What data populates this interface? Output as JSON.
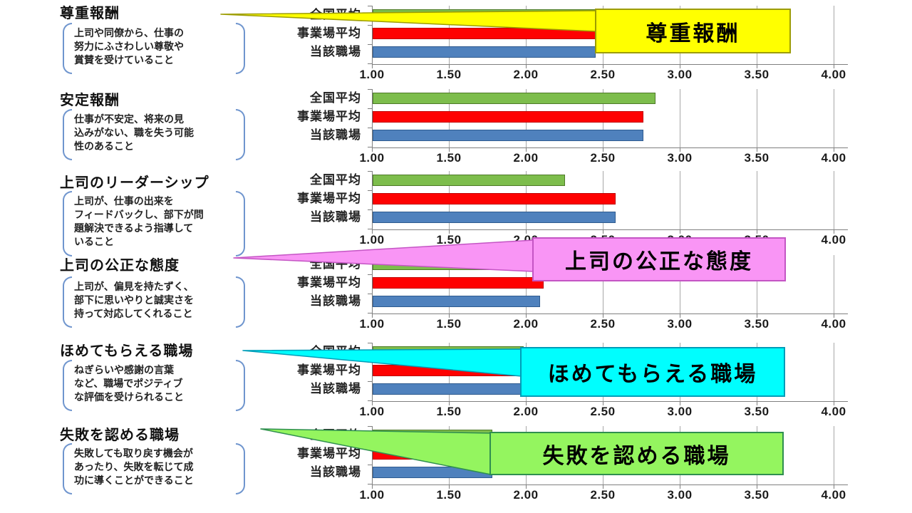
{
  "slide": {
    "background": "#FFFFFF"
  },
  "axis": {
    "tick_labels": [
      "1.00",
      "1.50",
      "2.00",
      "2.50",
      "3.00",
      "3.50",
      "4.00"
    ],
    "min": 1.0,
    "max": 4.0
  },
  "categories": [
    "全国平均",
    "事業場平均",
    "当該職場"
  ],
  "bar_colors": {
    "national": {
      "fill": "#7DBD4C",
      "border": "#4E7A28"
    },
    "worksite": {
      "fill": "#FE0101",
      "border": "#C00000"
    },
    "workplace": {
      "fill": "#4F81BD",
      "border": "#2F5B8F"
    }
  },
  "sections": [
    {
      "title": "尊重報酬",
      "description": "上司や同僚から、仕事の\n努力にふさわしい尊敬や\n賞賛を受けていること",
      "values": [
        2.45,
        2.44,
        2.44
      ]
    },
    {
      "title": "安定報酬",
      "description": "仕事が不安定、将来の見\n込みがない、職を失う可能\n性のあること",
      "values": [
        2.83,
        2.75,
        2.75
      ]
    },
    {
      "title": "上司のリーダーシップ",
      "description": "上司が、仕事の出来を\nフィードバックし、部下が問\n題解決できるよう指導して\nいること",
      "values": [
        2.24,
        2.57,
        2.57
      ]
    },
    {
      "title": "上司の公正な態度",
      "description": "上司が、偏見を持たずく、\n部下に思いやりと誠実さを\n持って対応してくれること",
      "values": [
        2.05,
        2.1,
        2.08
      ]
    },
    {
      "title": "ほめてもらえる職場",
      "description": "ねぎらいや感謝の言葉\nなど、職場でポジティブ\nな評価を受けられること",
      "values": [
        1.97,
        1.99,
        1.98
      ]
    },
    {
      "title": "失敗を認める職場",
      "description": "失敗しても取り戻す機会が\nあったり、失敗を転じて成\n功に導くことができること",
      "values": [
        1.77,
        1.76,
        1.77
      ]
    }
  ],
  "callouts": [
    {
      "label": "尊重報酬",
      "fill": "#FFFF00",
      "border": "#9C9C00"
    },
    {
      "label": "上司の公正な態度",
      "fill": "#F995F5",
      "border": "#C455C4"
    },
    {
      "label": "ほめてもらえる職場",
      "fill": "#00FEFE",
      "border": "#009DB8"
    },
    {
      "label": "失敗を認める職場",
      "fill": "#94F55F",
      "border": "#2F8F4F"
    }
  ],
  "chart_data": [
    {
      "type": "bar",
      "orientation": "horizontal",
      "title": "尊重報酬",
      "categories": [
        "全国平均",
        "事業場平均",
        "当該職場"
      ],
      "values": [
        2.45,
        2.44,
        2.44
      ],
      "xlim": [
        1.0,
        4.0
      ],
      "xticks": [
        1.0,
        1.5,
        2.0,
        2.5,
        3.0,
        3.5,
        4.0
      ],
      "grid": true,
      "legend_position": "none",
      "bar_colors": [
        "#7DBD4C",
        "#FE0101",
        "#4F81BD"
      ]
    },
    {
      "type": "bar",
      "orientation": "horizontal",
      "title": "安定報酬",
      "categories": [
        "全国平均",
        "事業場平均",
        "当該職場"
      ],
      "values": [
        2.83,
        2.75,
        2.75
      ],
      "xlim": [
        1.0,
        4.0
      ],
      "xticks": [
        1.0,
        1.5,
        2.0,
        2.5,
        3.0,
        3.5,
        4.0
      ],
      "grid": true,
      "legend_position": "none",
      "bar_colors": [
        "#7DBD4C",
        "#FE0101",
        "#4F81BD"
      ]
    },
    {
      "type": "bar",
      "orientation": "horizontal",
      "title": "上司のリーダーシップ",
      "categories": [
        "全国平均",
        "事業場平均",
        "当該職場"
      ],
      "values": [
        2.24,
        2.57,
        2.57
      ],
      "xlim": [
        1.0,
        4.0
      ],
      "xticks": [
        1.0,
        1.5,
        2.0,
        2.5,
        3.0,
        3.5,
        4.0
      ],
      "grid": true,
      "legend_position": "none",
      "bar_colors": [
        "#7DBD4C",
        "#FE0101",
        "#4F81BD"
      ]
    },
    {
      "type": "bar",
      "orientation": "horizontal",
      "title": "上司の公正な態度",
      "categories": [
        "全国平均",
        "事業場平均",
        "当該職場"
      ],
      "values": [
        2.05,
        2.1,
        2.08
      ],
      "xlim": [
        1.0,
        4.0
      ],
      "xticks": [
        1.0,
        1.5,
        2.0,
        2.5,
        3.0,
        3.5,
        4.0
      ],
      "grid": true,
      "legend_position": "none",
      "bar_colors": [
        "#7DBD4C",
        "#FE0101",
        "#4F81BD"
      ]
    },
    {
      "type": "bar",
      "orientation": "horizontal",
      "title": "ほめてもらえる職場",
      "categories": [
        "全国平均",
        "事業場平均",
        "当該職場"
      ],
      "values": [
        1.97,
        1.99,
        1.98
      ],
      "xlim": [
        1.0,
        4.0
      ],
      "xticks": [
        1.0,
        1.5,
        2.0,
        2.5,
        3.0,
        3.5,
        4.0
      ],
      "grid": true,
      "legend_position": "none",
      "bar_colors": [
        "#7DBD4C",
        "#FE0101",
        "#4F81BD"
      ]
    },
    {
      "type": "bar",
      "orientation": "horizontal",
      "title": "失敗を認める職場",
      "categories": [
        "全国平均",
        "事業場平均",
        "当該職場"
      ],
      "values": [
        1.77,
        1.76,
        1.77
      ],
      "xlim": [
        1.0,
        4.0
      ],
      "xticks": [
        1.0,
        1.5,
        2.0,
        2.5,
        3.0,
        3.5,
        4.0
      ],
      "grid": true,
      "legend_position": "none",
      "bar_colors": [
        "#7DBD4C",
        "#FE0101",
        "#4F81BD"
      ]
    }
  ]
}
